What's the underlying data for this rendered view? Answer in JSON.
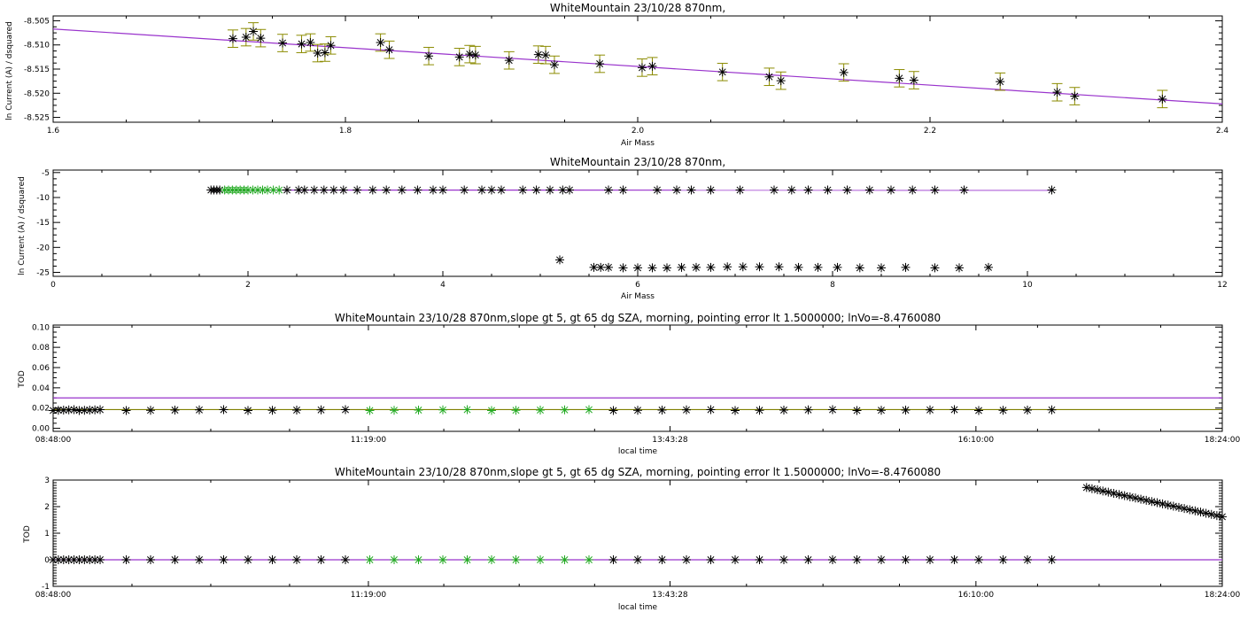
{
  "colors": {
    "fit_line": "#9933cc",
    "point": "#000000",
    "selected_point": "#22aa22",
    "error_bar": "#8b8b00",
    "tod_pan_line": "#808000"
  },
  "chart_data": [
    {
      "type": "scatter",
      "title": "WhiteMountain 23/10/28 870nm,",
      "xlabel": "Air Mass",
      "ylabel": "ln Current (A) / dsquared",
      "xlim": [
        1.6,
        2.4
      ],
      "ylim": [
        -8.526,
        -8.504
      ],
      "x_ticks": [
        1.6,
        1.8,
        2.0,
        2.2,
        2.4
      ],
      "x_tick_labels": [
        "1.6",
        "1.8",
        "2.0",
        "2.2",
        "2.4"
      ],
      "y_ticks": [
        -8.525,
        -8.52,
        -8.515,
        -8.51,
        -8.505
      ],
      "y_tick_labels": [
        "-8.525",
        "-8.520",
        "-8.515",
        "-8.510",
        "-8.505"
      ],
      "fit_line": {
        "x": [
          1.6,
          2.4
        ],
        "y": [
          -8.5067,
          -8.5222
        ]
      },
      "points": [
        {
          "x": 1.723,
          "y": -8.5087,
          "err": 0.0018
        },
        {
          "x": 1.732,
          "y": -8.5084,
          "err": 0.0018
        },
        {
          "x": 1.737,
          "y": -8.5072,
          "err": 0.0018
        },
        {
          "x": 1.742,
          "y": -8.5086,
          "err": 0.0018
        },
        {
          "x": 1.757,
          "y": -8.5096,
          "err": 0.0018
        },
        {
          "x": 1.77,
          "y": -8.5098,
          "err": 0.0018
        },
        {
          "x": 1.776,
          "y": -8.5095,
          "err": 0.0018
        },
        {
          "x": 1.781,
          "y": -8.5117,
          "err": 0.0018
        },
        {
          "x": 1.786,
          "y": -8.5116,
          "err": 0.0018
        },
        {
          "x": 1.79,
          "y": -8.5101,
          "err": 0.0018
        },
        {
          "x": 1.824,
          "y": -8.5095,
          "err": 0.0018
        },
        {
          "x": 1.83,
          "y": -8.511,
          "err": 0.0018
        },
        {
          "x": 1.857,
          "y": -8.5123,
          "err": 0.0018
        },
        {
          "x": 1.878,
          "y": -8.5125,
          "err": 0.0018
        },
        {
          "x": 1.885,
          "y": -8.5119,
          "err": 0.0018
        },
        {
          "x": 1.889,
          "y": -8.5121,
          "err": 0.0018
        },
        {
          "x": 1.912,
          "y": -8.5132,
          "err": 0.0018
        },
        {
          "x": 1.932,
          "y": -8.512,
          "err": 0.0018
        },
        {
          "x": 1.937,
          "y": -8.5121,
          "err": 0.0018
        },
        {
          "x": 1.943,
          "y": -8.5141,
          "err": 0.0018
        },
        {
          "x": 1.974,
          "y": -8.5139,
          "err": 0.0018
        },
        {
          "x": 2.003,
          "y": -8.5147,
          "err": 0.0018
        },
        {
          "x": 2.01,
          "y": -8.5144,
          "err": 0.0018
        },
        {
          "x": 2.058,
          "y": -8.5156,
          "err": 0.0018
        },
        {
          "x": 2.09,
          "y": -8.5166,
          "err": 0.0018
        },
        {
          "x": 2.098,
          "y": -8.5174,
          "err": 0.0018
        },
        {
          "x": 2.141,
          "y": -8.5157,
          "err": 0.0018
        },
        {
          "x": 2.179,
          "y": -8.5169,
          "err": 0.0018
        },
        {
          "x": 2.189,
          "y": -8.5173,
          "err": 0.0018
        },
        {
          "x": 2.248,
          "y": -8.5176,
          "err": 0.0018
        },
        {
          "x": 2.287,
          "y": -8.5198,
          "err": 0.0018
        },
        {
          "x": 2.299,
          "y": -8.5206,
          "err": 0.0018
        },
        {
          "x": 2.359,
          "y": -8.5212,
          "err": 0.0018
        }
      ]
    },
    {
      "type": "scatter",
      "title": "WhiteMountain 23/10/28 870nm,",
      "xlabel": "Air Mass",
      "ylabel": "ln Current (A) / dsquared",
      "xlim": [
        0,
        12
      ],
      "ylim": [
        -25.8,
        -4.5
      ],
      "x_ticks": [
        0,
        2,
        4,
        6,
        8,
        10,
        12
      ],
      "x_tick_labels": [
        "0",
        "2",
        "4",
        "6",
        "8",
        "10",
        "12"
      ],
      "y_ticks": [
        -25,
        -20,
        -15,
        -10,
        -5
      ],
      "y_tick_labels": [
        "-25",
        "-20",
        "-15",
        "-10",
        "-5"
      ],
      "fit_line": {
        "x": [
          1.6,
          10.25
        ],
        "y": [
          -8.5067,
          -8.54
        ]
      },
      "points": [
        {
          "x": 1.62,
          "y": -8.5
        },
        {
          "x": 1.65,
          "y": -8.5
        },
        {
          "x": 1.68,
          "y": -8.5
        },
        {
          "x": 1.71,
          "y": -8.5
        },
        {
          "x": 1.76,
          "y": -8.5,
          "g": 1
        },
        {
          "x": 1.8,
          "y": -8.5,
          "g": 1
        },
        {
          "x": 1.84,
          "y": -8.5,
          "g": 1
        },
        {
          "x": 1.88,
          "y": -8.5,
          "g": 1
        },
        {
          "x": 1.92,
          "y": -8.5,
          "g": 1
        },
        {
          "x": 1.96,
          "y": -8.5,
          "g": 1
        },
        {
          "x": 2.0,
          "y": -8.5,
          "g": 1
        },
        {
          "x": 2.05,
          "y": -8.5,
          "g": 1
        },
        {
          "x": 2.1,
          "y": -8.5,
          "g": 1
        },
        {
          "x": 2.15,
          "y": -8.5,
          "g": 1
        },
        {
          "x": 2.2,
          "y": -8.5,
          "g": 1
        },
        {
          "x": 2.26,
          "y": -8.5,
          "g": 1
        },
        {
          "x": 2.32,
          "y": -8.5,
          "g": 1
        },
        {
          "x": 2.4,
          "y": -8.5
        },
        {
          "x": 2.52,
          "y": -8.5
        },
        {
          "x": 2.58,
          "y": -8.5
        },
        {
          "x": 2.68,
          "y": -8.5
        },
        {
          "x": 2.78,
          "y": -8.5
        },
        {
          "x": 2.88,
          "y": -8.5
        },
        {
          "x": 2.98,
          "y": -8.5
        },
        {
          "x": 3.12,
          "y": -8.5
        },
        {
          "x": 3.28,
          "y": -8.5
        },
        {
          "x": 3.42,
          "y": -8.5
        },
        {
          "x": 3.58,
          "y": -8.5
        },
        {
          "x": 3.74,
          "y": -8.5
        },
        {
          "x": 3.9,
          "y": -8.5
        },
        {
          "x": 4.0,
          "y": -8.5
        },
        {
          "x": 4.22,
          "y": -8.5
        },
        {
          "x": 4.4,
          "y": -8.5
        },
        {
          "x": 4.5,
          "y": -8.5
        },
        {
          "x": 4.6,
          "y": -8.5
        },
        {
          "x": 4.82,
          "y": -8.5
        },
        {
          "x": 4.96,
          "y": -8.5
        },
        {
          "x": 5.1,
          "y": -8.5
        },
        {
          "x": 5.23,
          "y": -8.5
        },
        {
          "x": 5.3,
          "y": -8.5
        },
        {
          "x": 5.7,
          "y": -8.5
        },
        {
          "x": 5.85,
          "y": -8.5
        },
        {
          "x": 6.2,
          "y": -8.5
        },
        {
          "x": 6.4,
          "y": -8.5
        },
        {
          "x": 6.55,
          "y": -8.5
        },
        {
          "x": 6.75,
          "y": -8.5
        },
        {
          "x": 7.05,
          "y": -8.5
        },
        {
          "x": 7.4,
          "y": -8.5
        },
        {
          "x": 7.58,
          "y": -8.5
        },
        {
          "x": 7.75,
          "y": -8.5
        },
        {
          "x": 7.95,
          "y": -8.5
        },
        {
          "x": 8.15,
          "y": -8.5
        },
        {
          "x": 8.38,
          "y": -8.5
        },
        {
          "x": 8.6,
          "y": -8.5
        },
        {
          "x": 8.82,
          "y": -8.5
        },
        {
          "x": 9.05,
          "y": -8.5
        },
        {
          "x": 9.35,
          "y": -8.5
        },
        {
          "x": 10.25,
          "y": -8.5
        },
        {
          "x": 5.2,
          "y": -22.5
        },
        {
          "x": 5.55,
          "y": -24.0
        },
        {
          "x": 5.62,
          "y": -24.0
        },
        {
          "x": 5.7,
          "y": -24.0
        },
        {
          "x": 5.85,
          "y": -24.1
        },
        {
          "x": 6.0,
          "y": -24.1
        },
        {
          "x": 6.15,
          "y": -24.1
        },
        {
          "x": 6.3,
          "y": -24.1
        },
        {
          "x": 6.45,
          "y": -24.0
        },
        {
          "x": 6.6,
          "y": -24.0
        },
        {
          "x": 6.75,
          "y": -24.0
        },
        {
          "x": 6.92,
          "y": -23.9
        },
        {
          "x": 7.08,
          "y": -23.9
        },
        {
          "x": 7.25,
          "y": -23.9
        },
        {
          "x": 7.45,
          "y": -23.9
        },
        {
          "x": 7.65,
          "y": -24.0
        },
        {
          "x": 7.85,
          "y": -24.0
        },
        {
          "x": 8.05,
          "y": -24.0
        },
        {
          "x": 8.28,
          "y": -24.1
        },
        {
          "x": 8.5,
          "y": -24.1
        },
        {
          "x": 8.75,
          "y": -24.0
        },
        {
          "x": 9.05,
          "y": -24.1
        },
        {
          "x": 9.3,
          "y": -24.1
        },
        {
          "x": 9.6,
          "y": -24.0
        }
      ]
    },
    {
      "type": "scatter",
      "title": "WhiteMountain 23/10/28 870nm,slope gt 5, gt 65 dg SZA, morning, pointing error lt 1.5000000; lnVo=-8.4760080",
      "xlabel": "local time",
      "ylabel": "TOD",
      "xlim": [
        0,
        33600
      ],
      "ylim": [
        -0.003,
        0.102
      ],
      "x_ticks": [
        0,
        9060,
        17728,
        26520,
        33600
      ],
      "x_tick_labels": [
        "08:48:00",
        "11:19:00",
        "13:43:28",
        "16:10:00",
        "18:24:00"
      ],
      "y_ticks": [
        0.0,
        0.02,
        0.04,
        0.06,
        0.08,
        0.1
      ],
      "y_tick_labels": [
        "0.00",
        "0.02",
        "0.04",
        "0.06",
        "0.08",
        "0.10"
      ],
      "hlines": [
        {
          "y": 0.03,
          "color": "fit_line"
        },
        {
          "y": 0.0185,
          "color": "tod_pan_line"
        }
      ],
      "series_pattern": {
        "x_start": 0,
        "x_end": 29000,
        "dense_end": 1400,
        "step": 700,
        "green_range": [
          9060,
          15750
        ]
      },
      "y_values_hint": 0.018
    },
    {
      "type": "scatter",
      "title": "WhiteMountain 23/10/28 870nm,slope gt 5, gt 65 dg SZA, morning, pointing error lt 1.5000000; lnVo=-8.4760080",
      "xlabel": "local time",
      "ylabel": "TOD",
      "xlim": [
        0,
        33600
      ],
      "ylim": [
        -1.0,
        3.0
      ],
      "x_ticks": [
        0,
        9060,
        17728,
        26520,
        33600
      ],
      "x_tick_labels": [
        "08:48:00",
        "11:19:00",
        "13:43:28",
        "16:10:00",
        "18:24:00"
      ],
      "y_ticks": [
        -1,
        0,
        1,
        2,
        3
      ],
      "y_tick_labels": [
        "-1",
        "0",
        "1",
        "2",
        "3"
      ],
      "hlines": [
        {
          "y": 0.0,
          "color": "fit_line"
        }
      ],
      "series_pattern": {
        "x_start": 0,
        "x_end": 29000,
        "dense_end": 1400,
        "step": 700,
        "green_range": [
          9060,
          15750
        ]
      },
      "tail": {
        "x_start": 29700,
        "x_end": 33600,
        "y_start": 2.72,
        "y_end": 1.62,
        "count": 26
      }
    }
  ]
}
